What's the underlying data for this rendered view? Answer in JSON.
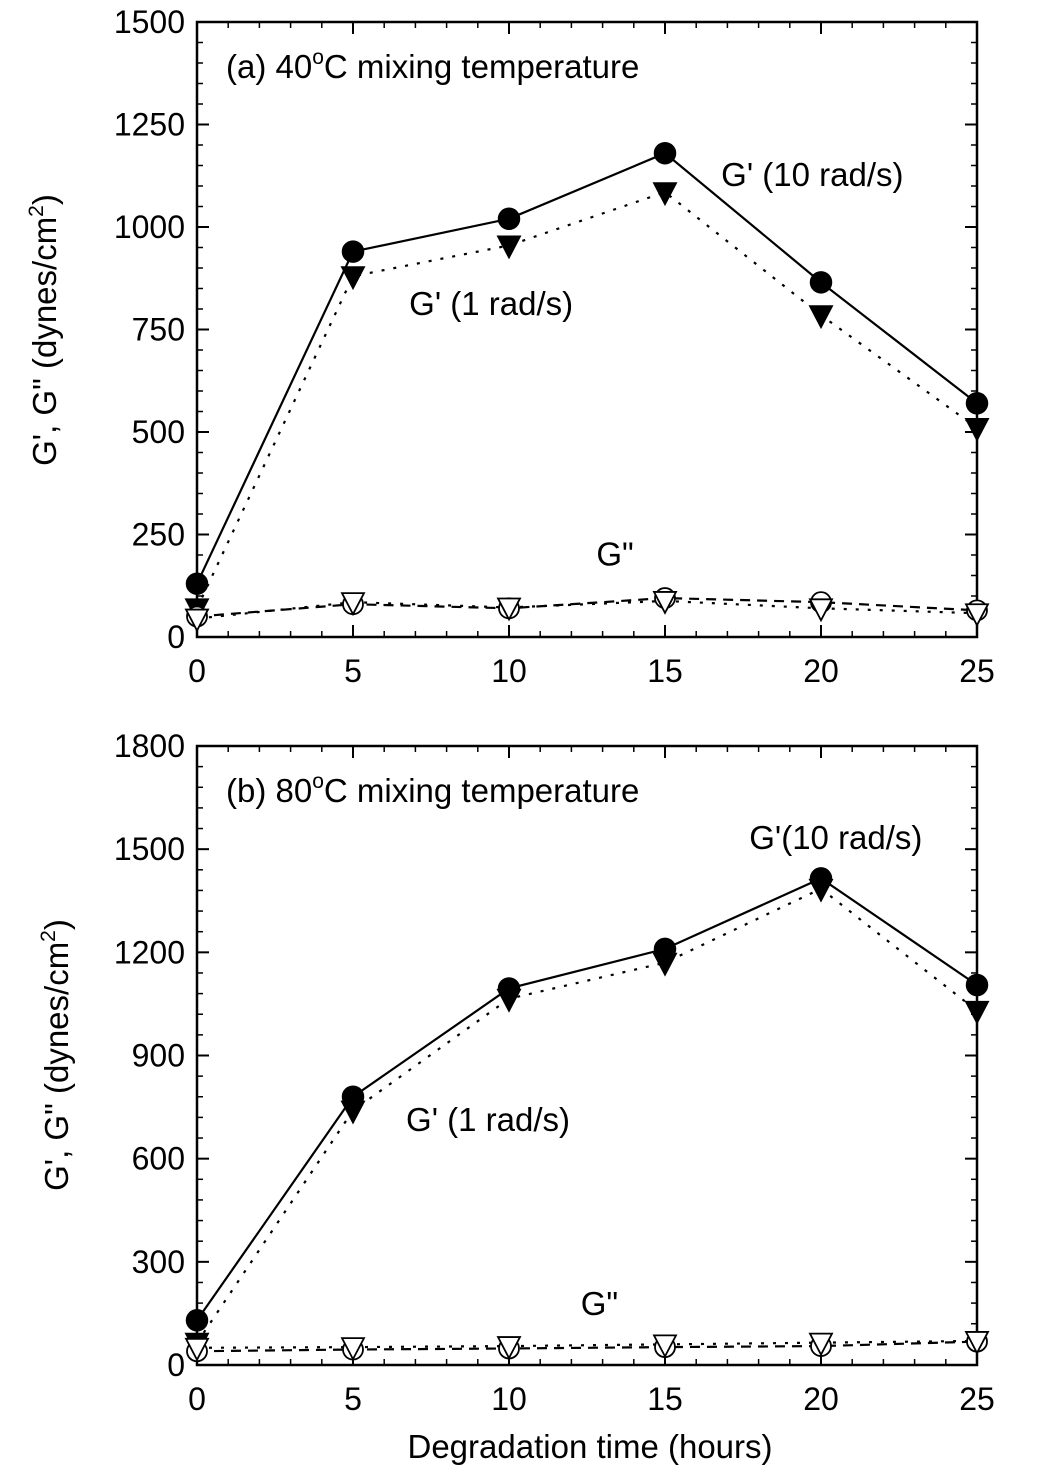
{
  "chart_data": [
    {
      "type": "line",
      "title": "(a)  40oC mixing temperature",
      "title_parts": [
        "(a)  40",
        "o",
        "C mixing temperature"
      ],
      "ylabel": "G', G\" (dynes/cm2)",
      "ylabel_parts": [
        "G', G\" (dynes/cm",
        "2",
        ")"
      ],
      "xlabel": "",
      "x": [
        0,
        5,
        10,
        15,
        20,
        25
      ],
      "xlim": [
        0,
        25
      ],
      "ylim": [
        0,
        1500
      ],
      "xticks": [
        0,
        5,
        10,
        15,
        20,
        25
      ],
      "yticks": [
        0,
        250,
        500,
        750,
        1000,
        1250,
        1500
      ],
      "grid": false,
      "annotations": [
        {
          "text": "G' (10 rad/s)",
          "x": 16.8,
          "y": 1100
        },
        {
          "text": "G' (1 rad/s)",
          "x": 6.8,
          "y": 785
        },
        {
          "text": "G\"",
          "x": 12.8,
          "y": 175
        }
      ],
      "series": [
        {
          "values": [
            130,
            940,
            1020,
            1180,
            865,
            570
          ],
          "marker": "filled-circle",
          "line": "solid"
        },
        {
          "values": [
            70,
            880,
            955,
            1085,
            785,
            510
          ],
          "marker": "filled-triangle-down",
          "line": "dotted"
        },
        {
          "values": [
            50,
            80,
            70,
            95,
            85,
            65
          ],
          "marker": "open-circle",
          "line": "dashed"
        },
        {
          "values": [
            45,
            85,
            72,
            88,
            70,
            58
          ],
          "marker": "open-triangle-down",
          "line": "dotted"
        }
      ]
    },
    {
      "type": "line",
      "title": "(b)  80oC mixing temperature",
      "title_parts": [
        "(b)  80",
        "o",
        "C mixing temperature"
      ],
      "ylabel": "G', G\" (dynes/cm2)",
      "ylabel_parts": [
        "G', G\" (dynes/cm",
        "2",
        ")"
      ],
      "xlabel": "Degradation time (hours)",
      "x": [
        0,
        5,
        10,
        15,
        20,
        25
      ],
      "xlim": [
        0,
        25
      ],
      "ylim": [
        0,
        1800
      ],
      "xticks": [
        0,
        5,
        10,
        15,
        20,
        25
      ],
      "yticks": [
        0,
        300,
        600,
        900,
        1200,
        1500,
        1800
      ],
      "grid": false,
      "annotations": [
        {
          "text": "G'(10 rad/s)",
          "x": 17.7,
          "y": 1500
        },
        {
          "text": "G' (1 rad/s)",
          "x": 6.7,
          "y": 680
        },
        {
          "text": "G\"",
          "x": 12.3,
          "y": 145
        }
      ],
      "series": [
        {
          "values": [
            130,
            780,
            1095,
            1210,
            1415,
            1105
          ],
          "marker": "filled-circle",
          "line": "solid"
        },
        {
          "values": [
            65,
            740,
            1065,
            1170,
            1385,
            1030
          ],
          "marker": "filled-triangle-down",
          "line": "dotted"
        },
        {
          "values": [
            40,
            45,
            48,
            52,
            55,
            68
          ],
          "marker": "open-circle",
          "line": "dashed"
        },
        {
          "values": [
            50,
            52,
            55,
            60,
            65,
            70
          ],
          "marker": "open-triangle-down",
          "line": "dotted"
        }
      ]
    }
  ]
}
